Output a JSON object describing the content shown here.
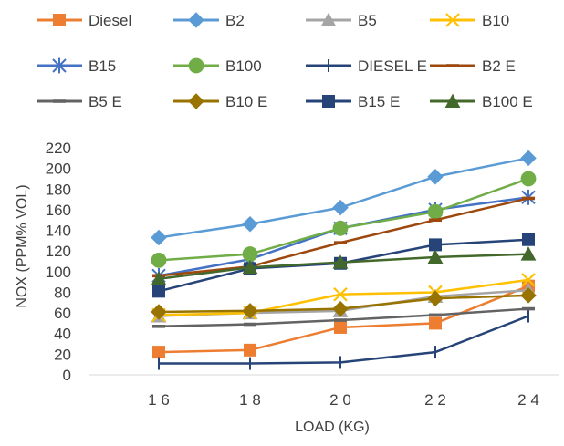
{
  "chart_data": {
    "type": "line",
    "title": "",
    "xlabel": "LOAD (KG)",
    "ylabel": "NOX  (PPM% VOL)",
    "x": [
      "1 6",
      "1 8",
      "2 0",
      "2 2",
      "2 4"
    ],
    "ylim": [
      0,
      220
    ],
    "yticks": [
      0,
      20,
      40,
      60,
      80,
      100,
      120,
      140,
      160,
      180,
      200,
      220
    ],
    "grid": false,
    "legend_position": "top",
    "series": [
      {
        "name": "Diesel",
        "color": "#ED7D31",
        "marker": "square",
        "values": [
          22,
          24,
          46,
          50,
          86
        ]
      },
      {
        "name": "B2",
        "color": "#5B9BD5",
        "marker": "diamond",
        "values": [
          133,
          146,
          162,
          192,
          210
        ]
      },
      {
        "name": "B5",
        "color": "#A5A5A5",
        "marker": "triangle",
        "values": [
          57,
          60,
          62,
          76,
          82
        ]
      },
      {
        "name": "B10",
        "color": "#FFC000",
        "marker": "x",
        "values": [
          58,
          60,
          78,
          80,
          92
        ]
      },
      {
        "name": "B15",
        "color": "#4472C4",
        "marker": "asterisk",
        "values": [
          96,
          112,
          142,
          160,
          172
        ]
      },
      {
        "name": "B100",
        "color": "#70AD47",
        "marker": "circle",
        "values": [
          111,
          117,
          142,
          158,
          190
        ]
      },
      {
        "name": "DIESEL E",
        "color": "#264478",
        "marker": "plus",
        "values": [
          11,
          11,
          12,
          22,
          57
        ]
      },
      {
        "name": "B2 E",
        "color": "#9E480E",
        "marker": "dash",
        "values": [
          96,
          105,
          128,
          150,
          171
        ]
      },
      {
        "name": "B5 E",
        "color": "#636363",
        "marker": "dash",
        "values": [
          47,
          49,
          53,
          58,
          64
        ]
      },
      {
        "name": "B10 E",
        "color": "#997300",
        "marker": "diamond",
        "values": [
          61,
          62,
          64,
          74,
          77
        ]
      },
      {
        "name": "B15 E",
        "color": "#264478",
        "marker": "square",
        "values": [
          81,
          103,
          108,
          126,
          131
        ]
      },
      {
        "name": "B100 E",
        "color": "#43682B",
        "marker": "triangle",
        "values": [
          93,
          104,
          109,
          114,
          117
        ]
      }
    ]
  }
}
